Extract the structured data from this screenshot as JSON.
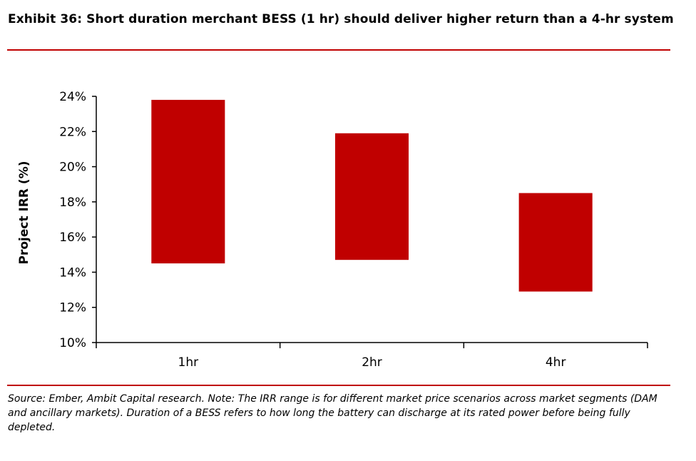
{
  "header": {
    "title": "Exhibit 36: Short duration merchant BESS (1 hr) should deliver higher return than a 4-hr system"
  },
  "footer": {
    "source": "Source: Ember, Ambit Capital research. Note: The IRR range is for different market price scenarios across market segments (DAM and ancillary markets). Duration of a BESS refers to how long the battery can discharge at its rated power before being fully depleted."
  },
  "chart_data": {
    "type": "bar",
    "subtype": "floating-range",
    "categories": [
      "1hr",
      "2hr",
      "4hr"
    ],
    "series": [
      {
        "low": [
          14.5,
          14.7,
          12.9
        ],
        "high": [
          23.8,
          21.9,
          18.5
        ],
        "color": "#c00000"
      }
    ],
    "ylabel": "Project IRR (%)",
    "xlabel": "",
    "ylim": [
      10,
      24
    ],
    "yticks": [
      10,
      12,
      14,
      16,
      18,
      20,
      22,
      24
    ],
    "ytick_labels": [
      "10%",
      "12%",
      "14%",
      "16%",
      "18%",
      "20%",
      "22%",
      "24%"
    ],
    "grid": false,
    "legend": "none"
  }
}
